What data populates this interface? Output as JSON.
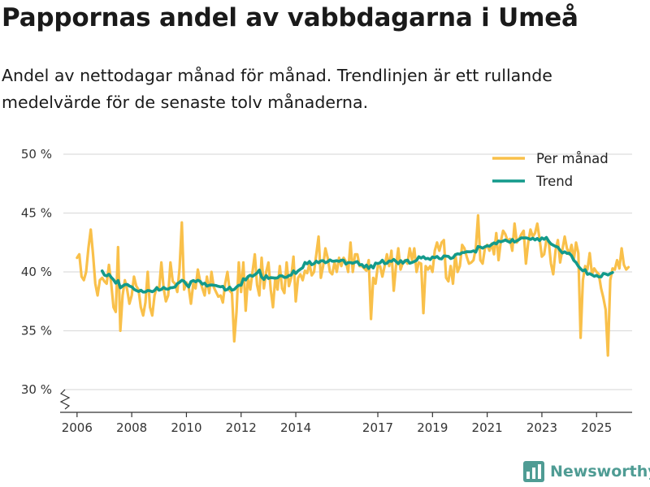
{
  "header": {
    "title": "Pappornas andel av vabbdagarna i Umeå",
    "subtitle": "Andel av nettodagar månad för månad. Trendlinjen är ett rullande medelvärde för de senaste tolv månaderna."
  },
  "brand": {
    "name": "Newsworthy",
    "color": "#4f9c94",
    "icon": "bar-chart-logo-icon"
  },
  "colors": {
    "monthly": "#f9c04a",
    "trend": "#139a8b",
    "grid": "#dddddd",
    "axis": "#333333"
  },
  "chart_data": {
    "type": "line",
    "title": "Pappornas andel av vabbdagarna i Umeå",
    "xlabel": "",
    "ylabel": "",
    "ylim": [
      30,
      50
    ],
    "y_ticks": [
      30,
      35,
      40,
      45,
      50
    ],
    "y_tick_labels": [
      "30 %",
      "35 %",
      "40 %",
      "45 %",
      "50 %"
    ],
    "xlim": [
      2005.5,
      2026.3
    ],
    "x_ticks": [
      2006,
      2008,
      2010,
      2012,
      2014,
      2017,
      2019,
      2021,
      2023,
      2025
    ],
    "x_tick_labels": [
      "2006",
      "2008",
      "2010",
      "2012",
      "2014",
      "2017",
      "2019",
      "2021",
      "2023",
      "2025"
    ],
    "legend": {
      "position": "top-right"
    },
    "axis_break": true,
    "series": [
      {
        "name": "Per månad",
        "x_start": 2006.0,
        "step": 0.08333,
        "values": [
          41.2,
          41.5,
          39.6,
          39.3,
          40.0,
          42.0,
          43.6,
          41.5,
          39.0,
          38.0,
          39.3,
          39.5,
          39.2,
          39.0,
          40.6,
          39.0,
          37.0,
          36.6,
          42.1,
          35.0,
          38.0,
          39.3,
          38.5,
          37.3,
          38.0,
          39.6,
          38.8,
          38.5,
          37.0,
          36.3,
          37.4,
          40.0,
          37.0,
          36.3,
          38.0,
          38.7,
          38.5,
          40.8,
          38.6,
          37.5,
          38.0,
          40.8,
          39.2,
          39.0,
          38.3,
          40.3,
          44.2,
          38.5,
          39.1,
          38.7,
          37.3,
          39.0,
          38.6,
          40.2,
          39.2,
          38.6,
          38.0,
          39.6,
          38.2,
          40.0,
          38.7,
          38.3,
          37.9,
          38.0,
          37.4,
          39.0,
          40.0,
          38.4,
          38.2,
          34.1,
          36.6,
          40.8,
          38.3,
          40.8,
          36.7,
          39.5,
          38.5,
          40.0,
          41.5,
          38.9,
          38.0,
          41.2,
          38.6,
          40.0,
          40.8,
          38.5,
          37.0,
          39.5,
          38.5,
          40.5,
          38.6,
          38.2,
          40.8,
          38.8,
          39.5,
          41.3,
          37.5,
          39.5,
          39.8,
          39.3,
          40.1,
          39.9,
          40.7,
          39.7,
          40.0,
          41.5,
          43.0,
          39.5,
          40.5,
          42.0,
          41.2,
          40.0,
          39.8,
          40.8,
          40.0,
          41.2,
          40.5,
          41.2,
          40.9,
          40.0,
          42.5,
          40.0,
          41.5,
          41.5,
          40.5,
          40.5,
          40.3,
          40.1,
          41.0,
          36.0,
          39.5,
          39.0,
          40.5,
          40.5,
          39.6,
          40.5,
          41.5,
          40.5,
          41.8,
          38.4,
          40.5,
          42.0,
          40.2,
          40.8,
          41.0,
          40.7,
          42.0,
          41.0,
          42.0,
          40.0,
          40.8,
          40.7,
          36.5,
          40.5,
          40.2,
          40.5,
          40.0,
          41.8,
          42.5,
          41.8,
          42.5,
          42.7,
          39.5,
          39.2,
          40.5,
          39.0,
          41.5,
          40.0,
          40.5,
          42.3,
          42.0,
          41.3,
          40.7,
          40.8,
          41.0,
          42.0,
          44.8,
          41.0,
          40.7,
          42.0,
          42.3,
          41.8,
          42.4,
          41.5,
          43.3,
          41.0,
          42.6,
          43.5,
          43.2,
          42.6,
          42.8,
          41.8,
          44.1,
          42.5,
          42.8,
          43.2,
          43.5,
          40.7,
          42.5,
          43.6,
          43.0,
          43.3,
          44.1,
          42.8,
          41.3,
          41.5,
          42.7,
          42.6,
          40.7,
          39.8,
          41.8,
          42.7,
          40.8,
          41.9,
          43.0,
          42.0,
          41.5,
          42.3,
          41.0,
          42.5,
          41.6,
          34.4,
          39.3,
          40.5,
          40.2,
          41.6,
          39.8,
          40.3,
          40.0,
          39.8,
          38.6,
          37.8,
          36.8,
          32.9,
          39.3,
          40.3,
          40.2,
          41.0,
          40.3,
          42.0,
          40.6,
          40.2,
          40.4
        ]
      },
      {
        "name": "Trend",
        "x_start": 2006.9167,
        "step": 0.08333,
        "values": [
          40.08,
          39.73,
          39.66,
          39.8,
          39.54,
          39.34,
          39.04,
          39.26,
          38.65,
          38.79,
          38.92,
          38.94,
          38.8,
          38.73,
          38.53,
          38.42,
          38.34,
          38.44,
          38.29,
          38.3,
          38.42,
          38.39,
          38.32,
          38.43,
          38.66,
          38.44,
          38.51,
          38.68,
          38.55,
          38.54,
          38.65,
          38.67,
          38.72,
          39.0,
          39.12,
          39.29,
          39.21,
          38.94,
          38.72,
          39.17,
          39.27,
          39.16,
          39.29,
          39.2,
          38.96,
          39.04,
          38.79,
          38.87,
          38.89,
          38.87,
          38.84,
          38.77,
          38.73,
          38.77,
          38.45,
          38.51,
          38.7,
          38.44,
          38.51,
          38.71,
          38.87,
          38.87,
          39.42,
          39.32,
          39.6,
          39.72,
          39.63,
          39.76,
          39.91,
          40.16,
          39.56,
          39.36,
          39.69,
          39.44,
          39.51,
          39.5,
          39.47,
          39.5,
          39.67,
          39.66,
          39.53,
          39.55,
          39.69,
          39.73,
          40.09,
          39.87,
          40.09,
          40.23,
          40.35,
          40.8,
          40.69,
          40.88,
          40.61,
          40.7,
          40.91,
          40.77,
          40.94,
          40.95,
          40.78,
          40.87,
          41.02,
          40.91,
          40.92,
          40.95,
          40.9,
          40.99,
          40.99,
          40.67,
          40.79,
          40.79,
          40.73,
          40.82,
          40.88,
          40.59,
          40.63,
          40.4,
          40.57,
          40.29,
          40.54,
          40.34,
          40.75,
          40.71,
          40.77,
          40.99,
          40.7,
          40.73,
          40.93,
          40.9,
          41.06,
          40.89,
          40.7,
          40.96,
          40.74,
          40.94,
          41.0,
          40.74,
          40.8,
          40.88,
          40.98,
          41.29,
          41.18,
          41.3,
          41.11,
          41.15,
          41.05,
          41.27,
          41.21,
          41.31,
          41.13,
          41.1,
          41.36,
          41.34,
          41.32,
          41.13,
          41.21,
          41.46,
          41.54,
          41.51,
          41.64,
          41.65,
          41.72,
          41.71,
          41.72,
          41.79,
          41.68,
          42.16,
          42.11,
          42.02,
          42.14,
          42.22,
          42.18,
          42.34,
          42.47,
          42.38,
          42.62,
          42.56,
          42.63,
          42.71,
          42.6,
          42.51,
          42.76,
          42.54,
          42.64,
          42.75,
          42.9,
          42.88,
          42.9,
          42.85,
          42.76,
          42.87,
          42.72,
          42.84,
          42.66,
          42.89,
          42.77,
          42.93,
          42.61,
          42.38,
          42.27,
          42.17,
          42.1,
          41.83,
          41.61,
          41.71,
          41.57,
          41.59,
          41.37,
          40.98,
          40.8,
          40.48,
          40.26,
          40.09,
          40.19,
          39.79,
          39.85,
          39.75,
          39.63,
          39.7,
          39.58,
          39.58,
          39.87,
          39.83,
          39.74,
          39.86,
          39.95
        ]
      }
    ]
  }
}
